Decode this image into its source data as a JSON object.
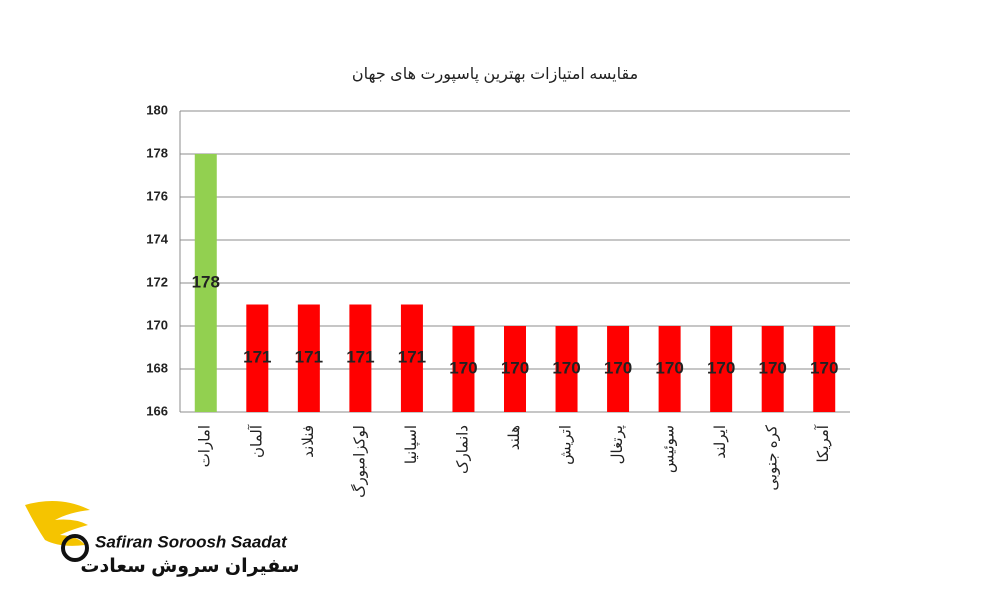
{
  "chart_data": {
    "type": "bar",
    "title": "مقایسه امتیازات بهترین پاسپورت های جهان",
    "categories": [
      "امارات",
      "آلمان",
      "فنلاند",
      "لوکزامبورگ",
      "اسپانیا",
      "دانمارک",
      "هلند",
      "اتریش",
      "پرتغال",
      "سوئیس",
      "ایرلند",
      "کره جنوبی",
      "آمریکا"
    ],
    "values": [
      178,
      171,
      171,
      171,
      171,
      170,
      170,
      170,
      170,
      170,
      170,
      170,
      170
    ],
    "colors": [
      "#92d050",
      "#ff0000",
      "#ff0000",
      "#ff0000",
      "#ff0000",
      "#ff0000",
      "#ff0000",
      "#ff0000",
      "#ff0000",
      "#ff0000",
      "#ff0000",
      "#ff0000",
      "#ff0000"
    ],
    "ylim": [
      166,
      180
    ],
    "yticks": [
      166,
      168,
      170,
      172,
      174,
      176,
      178,
      180
    ],
    "grid": true
  },
  "logo": {
    "name_en": "Safiran Soroosh Saadat",
    "name_fa": "سفیران سروش سعادت"
  }
}
